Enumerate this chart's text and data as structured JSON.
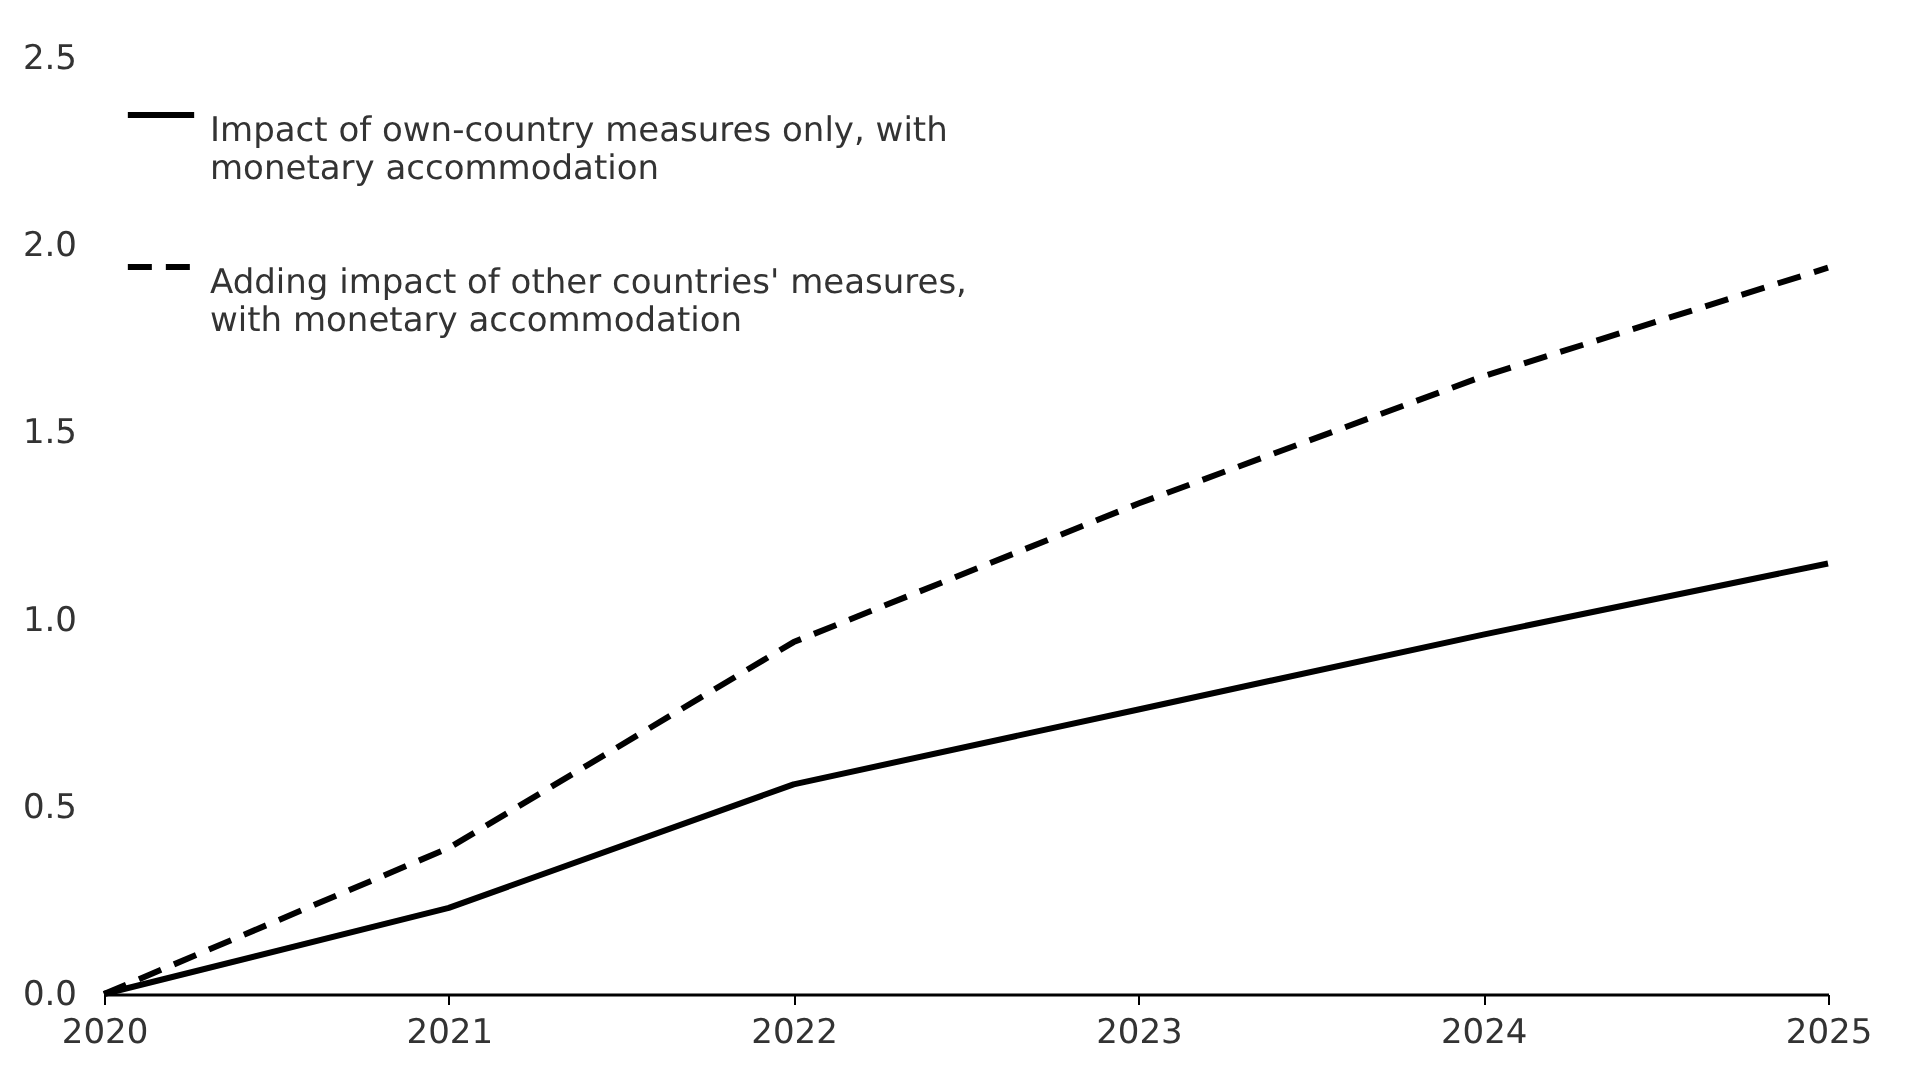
{
  "chart_data": {
    "type": "line",
    "x": [
      2020,
      2021,
      2022,
      2023,
      2024,
      2025
    ],
    "series": [
      {
        "name": "Impact of own-country measures only, with monetary accommodation",
        "color": "#000000",
        "line_style": "solid",
        "values": [
          0,
          0.23,
          0.56,
          0.76,
          0.96,
          1.15
        ]
      },
      {
        "name": "Adding impact of other countries' measures, with monetary accommodation",
        "color": "#000000",
        "line_style": "dashed",
        "values": [
          0,
          0.39,
          0.94,
          1.31,
          1.65,
          1.94
        ]
      }
    ],
    "xlim": [
      2020,
      2025
    ],
    "xticks": [
      2020,
      2021,
      2022,
      2023,
      2024,
      2025
    ],
    "ylim": [
      0,
      2.5
    ],
    "yticks": [
      {
        "value": 0,
        "label": "0.0"
      },
      {
        "value": 0.5,
        "label": "0.5"
      },
      {
        "value": 1,
        "label": "1.0"
      },
      {
        "value": 1.5,
        "label": "1.5"
      },
      {
        "value": 2,
        "label": "2.0"
      },
      {
        "value": 2.5,
        "label": "2.5"
      }
    ],
    "grid": false,
    "legend": "top left",
    "marker": "none"
  }
}
